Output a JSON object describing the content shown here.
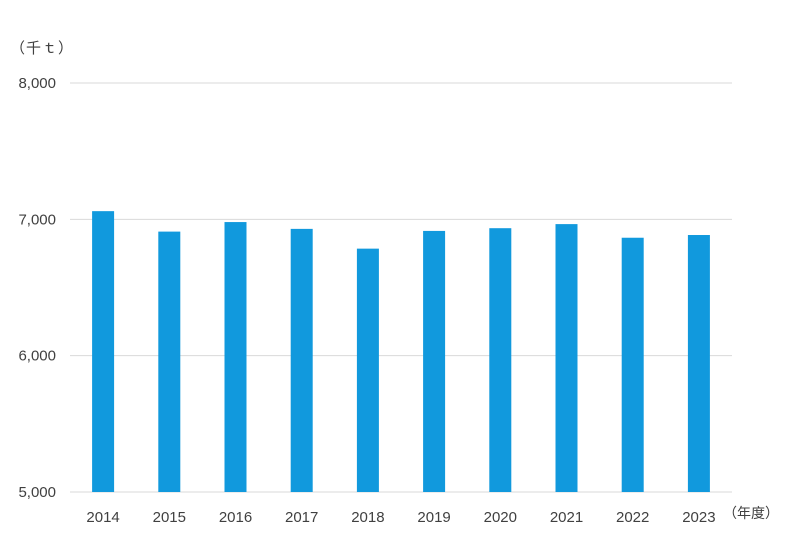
{
  "chart_data": {
    "type": "bar",
    "title": "",
    "y_unit_label": "（千ｔ）",
    "x_unit_label": "（年度）",
    "categories": [
      "2014",
      "2015",
      "2016",
      "2017",
      "2018",
      "2019",
      "2020",
      "2021",
      "2022",
      "2023"
    ],
    "series": [
      {
        "values": [
          7060,
          6910,
          6980,
          6930,
          6785,
          6915,
          6935,
          6965,
          6865,
          6885
        ],
        "color": "#1199dd"
      }
    ],
    "ylim": [
      5000,
      8000
    ],
    "yticks": [
      5000,
      6000,
      7000,
      8000
    ],
    "ytick_labels": [
      "5,000",
      "6,000",
      "7,000",
      "8,000"
    ],
    "grid": true,
    "gridline_color": "#d9d9d9",
    "legend": "none"
  }
}
